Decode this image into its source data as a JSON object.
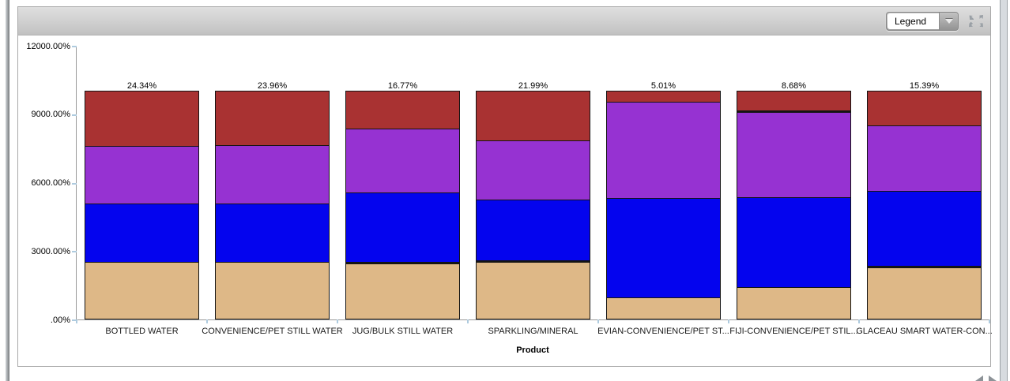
{
  "toolbar": {
    "legend_label": "Legend"
  },
  "icons": {
    "dropdown_arrow": "chevron-down",
    "panel_corner": "maximize",
    "pager_left": "previous-arrow",
    "pager_right": "next-arrow"
  },
  "colors": {
    "segment_tan": "#DEB887",
    "segment_blue": "#0404EE",
    "segment_purple": "#9632D2",
    "segment_red": "#A93232",
    "axis_line": "#999999",
    "tick_mark": "#AECBDF",
    "segment_border": "#141414"
  },
  "chart_data": {
    "type": "bar",
    "subtype": "stacked-percent-labels",
    "title": "",
    "xlabel": "Product",
    "ylabel": "",
    "ylim": [
      0,
      12000
    ],
    "bar_total_percent": 10000,
    "grid": false,
    "legend_position": "collapsed-dropdown",
    "y_tick_labels": [
      "12000.00%",
      "9000.00%",
      "6000.00%",
      "3000.00%",
      ".00%"
    ],
    "categories": [
      "BOTTLED WATER",
      "CONVENIENCE/PET STILL WATER",
      "JUG/BULK STILL WATER",
      "SPARKLING/MINERAL",
      "EVIAN-CONVENIENCE/PET ST...",
      "FIJI-CONVENIENCE/PET STIL...",
      "GLACEAU SMART WATER-CON..."
    ],
    "series": [
      {
        "stack_position": "bottom",
        "color": "#DEB887",
        "values": [
          24.86,
          24.93,
          25,
          25.7,
          9.4,
          13.69,
          23.3
        ],
        "labels": [
          "24.86%",
          "24.93%",
          "25%",
          "25.7%",
          "9.4%",
          "13.69%",
          "23.3%"
        ]
      },
      {
        "stack_position": "second",
        "color": "#0404EE",
        "values": [
          25.52,
          25.72,
          30.37,
          26.56,
          43.36,
          39.43,
          32.67
        ],
        "labels": [
          "25.52%",
          "25.72%",
          "30.37%",
          "26.56%",
          "43.36%",
          "39.43%",
          "32.67%"
        ]
      },
      {
        "stack_position": "third",
        "color": "#9632D2",
        "values": [
          25.29,
          25.38,
          27.86,
          25.75,
          42.22,
          38.21,
          28.65
        ],
        "labels": [
          "25.29%",
          "25.38%",
          "27.86%",
          "25.75%",
          "42.22%",
          "38.21%",
          "28.65%"
        ]
      },
      {
        "stack_position": "top",
        "color": "#A93232",
        "values": [
          24.34,
          23.96,
          16.77,
          21.99,
          5.01,
          8.68,
          15.39
        ],
        "labels": [
          "24.34%",
          "23.96%",
          "16.77%",
          "21.99%",
          "5.01%",
          "8.68%",
          "15.39%"
        ]
      }
    ],
    "thick_borders": [
      {
        "bar": 2,
        "segment": 0
      },
      {
        "bar": 3,
        "segment": 0
      },
      {
        "bar": 5,
        "segment": 2
      },
      {
        "bar": 6,
        "segment": 0
      }
    ]
  }
}
